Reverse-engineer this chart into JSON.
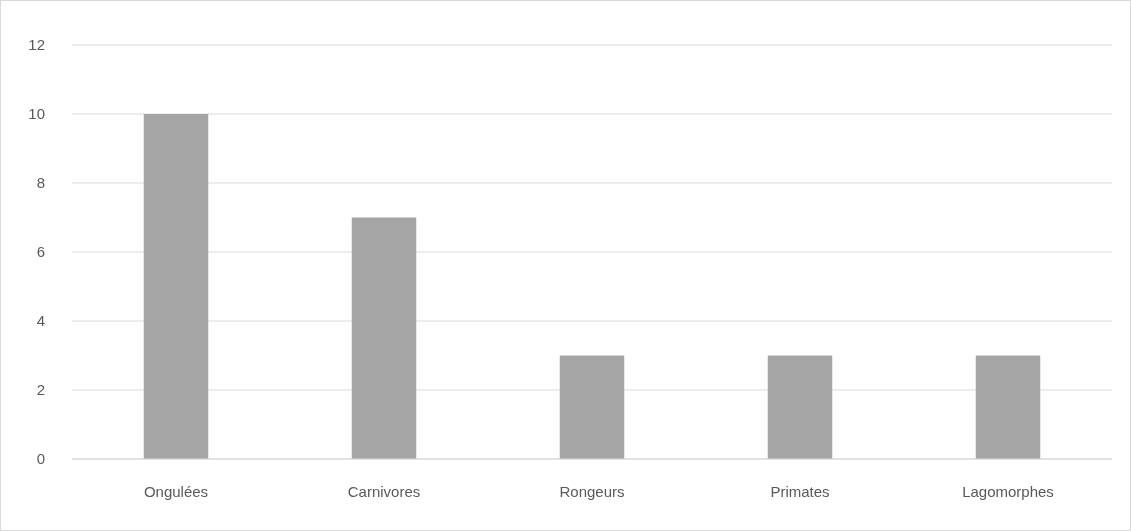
{
  "chart_data": {
    "type": "bar",
    "categories": [
      "Ongulées",
      "Carnivores",
      "Rongeurs",
      "Primates",
      "Lagomorphes"
    ],
    "values": [
      10,
      7,
      3,
      3,
      3
    ],
    "color": "#a5a5a5",
    "ylim": [
      0,
      12
    ],
    "yticks": [
      0,
      2,
      4,
      6,
      8,
      10,
      12
    ],
    "grid": "y"
  }
}
